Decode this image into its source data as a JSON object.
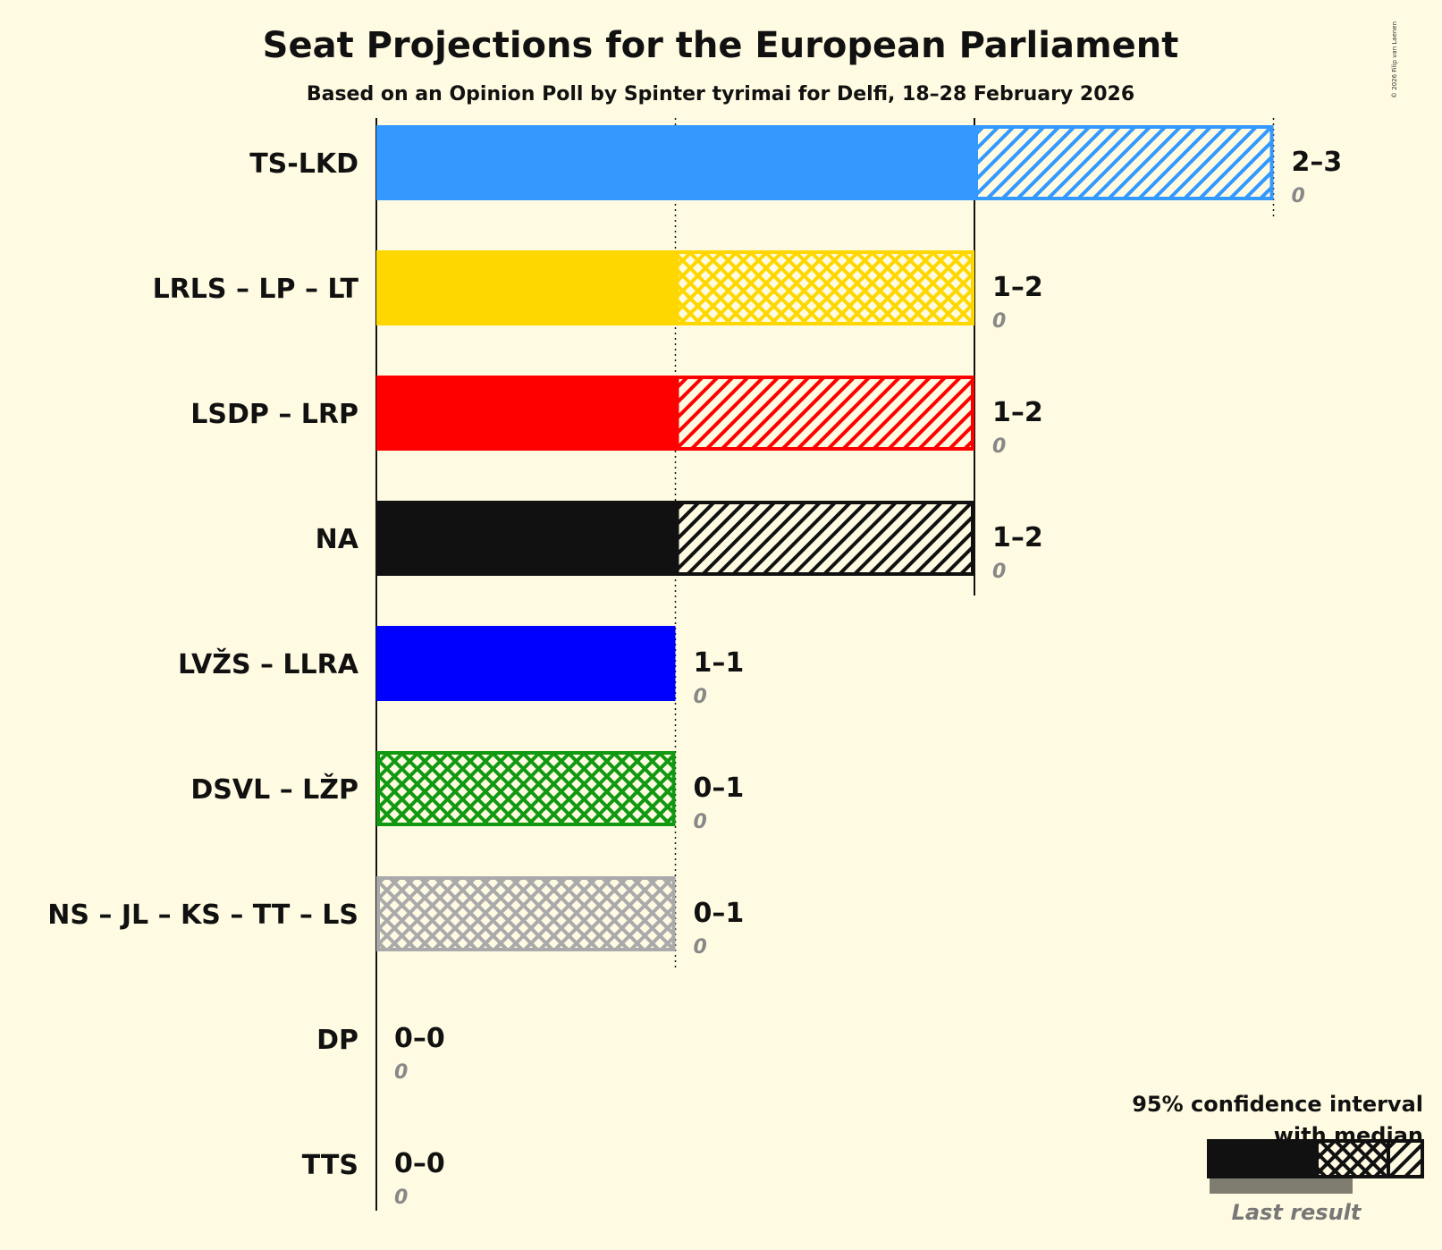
{
  "chart_data": {
    "type": "bar",
    "orientation": "horizontal",
    "title": "Seat Projections for the European Parliament",
    "subtitle": "Based on an Opinion Poll by Spinter tyrimai for Delfi, 18–28 February 2026",
    "copyright": "© 2026 Filip van Laenen",
    "xlim": [
      0,
      3
    ],
    "categories": [
      "TS-LKD",
      "LRLS – LP – LT",
      "LSDP – LRP",
      "NA",
      "LVŽS – LLRA",
      "DSVL – LŽP",
      "NS – JL – KS – TT – LS",
      "DP",
      "TTS"
    ],
    "series": [
      {
        "name": "CI low",
        "values": [
          2,
          1,
          1,
          1,
          1,
          0,
          0,
          0,
          0
        ]
      },
      {
        "name": "Median",
        "values": [
          2,
          2,
          1,
          1,
          1,
          1,
          1,
          0,
          0
        ]
      },
      {
        "name": "CI high",
        "values": [
          3,
          2,
          2,
          2,
          1,
          1,
          1,
          0,
          0
        ]
      },
      {
        "name": "Last result",
        "values": [
          0,
          0,
          0,
          0,
          0,
          0,
          0,
          0,
          0
        ]
      }
    ],
    "range_labels": [
      "2–3",
      "1–2",
      "1–2",
      "1–2",
      "1–1",
      "0–1",
      "0–1",
      "0–0",
      "0–0"
    ],
    "last_labels": [
      "0",
      "0",
      "0",
      "0",
      "0",
      "0",
      "0",
      "0",
      "0"
    ],
    "colors": [
      "#3399ff",
      "#ffd700",
      "#ff0000",
      "#111111",
      "#0000ff",
      "#119911",
      "#aaaaaa",
      "#777777",
      "#777777"
    ],
    "legend": {
      "line1": "95% confidence interval",
      "line2": "with median",
      "last": "Last result",
      "placement": "bottom-right"
    }
  }
}
